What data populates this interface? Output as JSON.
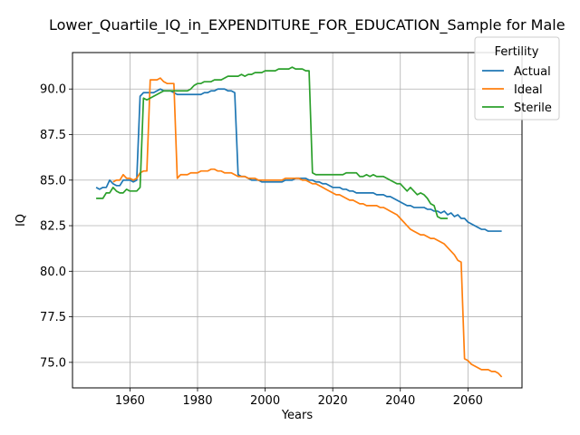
{
  "chart_data": {
    "type": "line",
    "title": "Lower_Quartile_IQ_in_EXPENDITURE_FOR_EDUCATION_Sample for Male",
    "xlabel": "Years",
    "ylabel": "IQ",
    "xlim": [
      1943,
      2076
    ],
    "ylim": [
      73.6,
      92.0
    ],
    "xticks": [
      1960,
      1980,
      2000,
      2020,
      2040,
      2060
    ],
    "yticks": [
      75.0,
      77.5,
      80.0,
      82.5,
      85.0,
      87.5,
      90.0
    ],
    "grid": true,
    "legend": {
      "title": "Fertility",
      "position": "top-right"
    },
    "series": [
      {
        "name": "Actual",
        "color": "#1f77b4",
        "x": [
          1950,
          1951,
          1952,
          1953,
          1954,
          1955,
          1956,
          1957,
          1958,
          1959,
          1960,
          1961,
          1962,
          1963,
          1964,
          1965,
          1966,
          1967,
          1968,
          1969,
          1970,
          1971,
          1972,
          1973,
          1974,
          1975,
          1976,
          1977,
          1978,
          1979,
          1980,
          1981,
          1982,
          1983,
          1984,
          1985,
          1986,
          1987,
          1988,
          1989,
          1990,
          1991,
          1992,
          1993,
          1994,
          1995,
          1996,
          1997,
          1998,
          1999,
          2000,
          2001,
          2002,
          2003,
          2004,
          2005,
          2006,
          2007,
          2008,
          2009,
          2010,
          2011,
          2012,
          2013,
          2014,
          2015,
          2016,
          2017,
          2018,
          2019,
          2020,
          2021,
          2022,
          2023,
          2024,
          2025,
          2026,
          2027,
          2028,
          2029,
          2030,
          2031,
          2032,
          2033,
          2034,
          2035,
          2036,
          2037,
          2038,
          2039,
          2040,
          2041,
          2042,
          2043,
          2044,
          2045,
          2046,
          2047,
          2048,
          2049,
          2050,
          2051,
          2052,
          2053,
          2054,
          2055,
          2056,
          2057,
          2058,
          2059,
          2060,
          2061,
          2062,
          2063,
          2064,
          2065,
          2066,
          2067,
          2068,
          2069,
          2070
        ],
        "y": [
          84.6,
          84.5,
          84.6,
          84.6,
          85.0,
          84.8,
          84.7,
          84.7,
          85.0,
          85.0,
          85.0,
          84.9,
          85.0,
          89.6,
          89.8,
          89.8,
          89.8,
          89.8,
          89.9,
          90.0,
          89.9,
          89.9,
          89.9,
          89.8,
          89.7,
          89.7,
          89.7,
          89.7,
          89.7,
          89.7,
          89.7,
          89.7,
          89.8,
          89.8,
          89.9,
          89.9,
          90.0,
          90.0,
          90.0,
          89.9,
          89.9,
          89.8,
          85.3,
          85.2,
          85.2,
          85.1,
          85.0,
          85.0,
          85.0,
          84.9,
          84.9,
          84.9,
          84.9,
          84.9,
          84.9,
          84.9,
          85.0,
          85.0,
          85.0,
          85.1,
          85.1,
          85.1,
          85.1,
          85.0,
          85.0,
          84.9,
          84.9,
          84.8,
          84.8,
          84.7,
          84.6,
          84.6,
          84.6,
          84.5,
          84.5,
          84.4,
          84.4,
          84.3,
          84.3,
          84.3,
          84.3,
          84.3,
          84.3,
          84.2,
          84.2,
          84.2,
          84.1,
          84.1,
          84.0,
          83.9,
          83.8,
          83.7,
          83.6,
          83.6,
          83.5,
          83.5,
          83.5,
          83.5,
          83.4,
          83.4,
          83.3,
          83.3,
          83.2,
          83.3,
          83.1,
          83.2,
          83.0,
          83.1,
          82.9,
          82.9,
          82.7,
          82.6,
          82.5,
          82.4,
          82.3,
          82.3,
          82.2,
          82.2,
          82.2,
          82.2,
          82.2
        ]
      },
      {
        "name": "Ideal",
        "color": "#ff7f0e",
        "x": [
          1955,
          1956,
          1957,
          1958,
          1959,
          1960,
          1961,
          1962,
          1963,
          1964,
          1965,
          1966,
          1967,
          1968,
          1969,
          1970,
          1971,
          1972,
          1973,
          1974,
          1975,
          1976,
          1977,
          1978,
          1979,
          1980,
          1981,
          1982,
          1983,
          1984,
          1985,
          1986,
          1987,
          1988,
          1989,
          1990,
          1991,
          1992,
          1993,
          1994,
          1995,
          1996,
          1997,
          1998,
          1999,
          2000,
          2001,
          2002,
          2003,
          2004,
          2005,
          2006,
          2007,
          2008,
          2009,
          2010,
          2011,
          2012,
          2013,
          2014,
          2015,
          2016,
          2017,
          2018,
          2019,
          2020,
          2021,
          2022,
          2023,
          2024,
          2025,
          2026,
          2027,
          2028,
          2029,
          2030,
          2031,
          2032,
          2033,
          2034,
          2035,
          2036,
          2037,
          2038,
          2039,
          2040,
          2041,
          2042,
          2043,
          2044,
          2045,
          2046,
          2047,
          2048,
          2049,
          2050,
          2051,
          2052,
          2053,
          2054,
          2055,
          2056,
          2057,
          2058,
          2059,
          2060,
          2061,
          2062,
          2063,
          2064,
          2065,
          2066,
          2067,
          2068,
          2069,
          2070
        ],
        "y": [
          84.9,
          85.0,
          85.0,
          85.3,
          85.1,
          85.1,
          85.0,
          85.1,
          85.4,
          85.5,
          85.5,
          90.5,
          90.5,
          90.5,
          90.6,
          90.4,
          90.3,
          90.3,
          90.3,
          85.1,
          85.3,
          85.3,
          85.3,
          85.4,
          85.4,
          85.4,
          85.5,
          85.5,
          85.5,
          85.6,
          85.6,
          85.5,
          85.5,
          85.4,
          85.4,
          85.4,
          85.3,
          85.2,
          85.2,
          85.2,
          85.1,
          85.1,
          85.1,
          85.0,
          85.0,
          85.0,
          85.0,
          85.0,
          85.0,
          85.0,
          85.0,
          85.1,
          85.1,
          85.1,
          85.1,
          85.1,
          85.0,
          85.0,
          84.9,
          84.8,
          84.8,
          84.7,
          84.6,
          84.5,
          84.4,
          84.3,
          84.2,
          84.2,
          84.1,
          84.0,
          83.9,
          83.9,
          83.8,
          83.7,
          83.7,
          83.6,
          83.6,
          83.6,
          83.6,
          83.5,
          83.5,
          83.4,
          83.3,
          83.2,
          83.1,
          82.9,
          82.7,
          82.5,
          82.3,
          82.2,
          82.1,
          82.0,
          82.0,
          81.9,
          81.8,
          81.8,
          81.7,
          81.6,
          81.5,
          81.3,
          81.1,
          80.9,
          80.6,
          80.5,
          75.2,
          75.1,
          74.9,
          74.8,
          74.7,
          74.6,
          74.6,
          74.6,
          74.5,
          74.5,
          74.4,
          74.2
        ]
      },
      {
        "name": "Sterile",
        "color": "#2ca02c",
        "x": [
          1950,
          1951,
          1952,
          1953,
          1954,
          1955,
          1956,
          1957,
          1958,
          1959,
          1960,
          1961,
          1962,
          1963,
          1964,
          1965,
          1966,
          1967,
          1968,
          1969,
          1970,
          1971,
          1972,
          1973,
          1974,
          1975,
          1976,
          1977,
          1978,
          1979,
          1980,
          1981,
          1982,
          1983,
          1984,
          1985,
          1986,
          1987,
          1988,
          1989,
          1990,
          1991,
          1992,
          1993,
          1994,
          1995,
          1996,
          1997,
          1998,
          1999,
          2000,
          2001,
          2002,
          2003,
          2004,
          2005,
          2006,
          2007,
          2008,
          2009,
          2010,
          2011,
          2012,
          2013,
          2014,
          2015,
          2016,
          2017,
          2018,
          2019,
          2020,
          2021,
          2022,
          2023,
          2024,
          2025,
          2026,
          2027,
          2028,
          2029,
          2030,
          2031,
          2032,
          2033,
          2034,
          2035,
          2036,
          2037,
          2038,
          2039,
          2040,
          2041,
          2042,
          2043,
          2044,
          2045,
          2046,
          2047,
          2048,
          2049,
          2050,
          2051,
          2052,
          2053,
          2054
        ],
        "y": [
          84.0,
          84.0,
          84.0,
          84.3,
          84.3,
          84.6,
          84.4,
          84.3,
          84.3,
          84.5,
          84.4,
          84.4,
          84.4,
          84.6,
          89.5,
          89.4,
          89.5,
          89.6,
          89.7,
          89.8,
          89.9,
          89.9,
          89.9,
          89.9,
          89.9,
          89.9,
          89.9,
          89.9,
          90.0,
          90.2,
          90.3,
          90.3,
          90.4,
          90.4,
          90.4,
          90.5,
          90.5,
          90.5,
          90.6,
          90.7,
          90.7,
          90.7,
          90.7,
          90.8,
          90.7,
          90.8,
          90.8,
          90.9,
          90.9,
          90.9,
          91.0,
          91.0,
          91.0,
          91.0,
          91.1,
          91.1,
          91.1,
          91.1,
          91.2,
          91.1,
          91.1,
          91.1,
          91.0,
          91.0,
          85.4,
          85.3,
          85.3,
          85.3,
          85.3,
          85.3,
          85.3,
          85.3,
          85.3,
          85.3,
          85.4,
          85.4,
          85.4,
          85.4,
          85.2,
          85.2,
          85.3,
          85.2,
          85.3,
          85.2,
          85.2,
          85.2,
          85.1,
          85.0,
          84.9,
          84.8,
          84.8,
          84.6,
          84.4,
          84.6,
          84.4,
          84.2,
          84.3,
          84.2,
          84.0,
          83.7,
          83.6,
          83.0,
          82.9,
          82.9,
          82.9
        ]
      }
    ]
  }
}
